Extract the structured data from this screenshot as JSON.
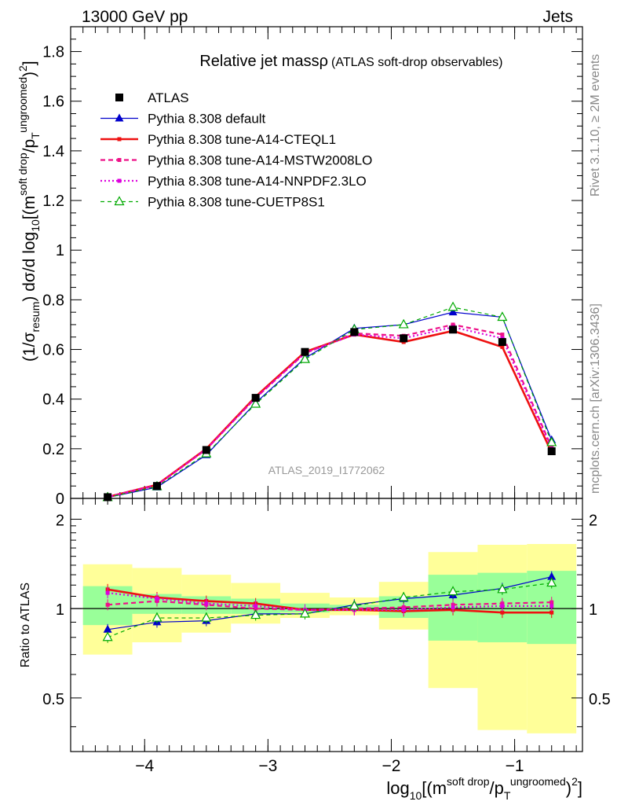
{
  "header": {
    "left": "13000 GeV pp",
    "right": "Jets"
  },
  "side_labels": {
    "rivet": "Rivet 3.1.10, ≥ 2M events",
    "mcplots": "mcplots.cern.ch [arXiv:1306.3436]"
  },
  "watermark": "ATLAS_2019_I1772062",
  "colors": {
    "atlas": "#000000",
    "default": "#0000cc",
    "cteql1": "#ee1111",
    "mstw": "#ee1188",
    "nnpdf": "#dd00dd",
    "cuetp8s1": "#00aa00",
    "band_inner": "#99ff99",
    "band_outer": "#ffff99"
  },
  "chart_data": [
    {
      "type": "line",
      "title_main": "Relative jet massρ",
      "title_sub": "(ATLAS soft-drop observables)",
      "ylabel": {
        "p1": "(1/σ",
        "sub1": "resum",
        "p2": ") dσ/d log",
        "sub2": "10",
        "p3": "[(m",
        "sup3": "soft drop",
        "p4": "/p",
        "sub4": "T",
        "sup4": "ungroomed",
        "p5": ")",
        "sup5": "2",
        "p6": "]"
      },
      "ylim": [
        0,
        1.9
      ],
      "yticks": [
        0,
        0.2,
        0.4,
        0.6,
        0.8,
        1,
        1.2,
        1.4,
        1.6,
        1.8
      ],
      "yticklabels": [
        "0",
        "0.2",
        "0.4",
        "0.6",
        "0.8",
        "1",
        "1.2",
        "1.4",
        "1.6",
        "1.8"
      ],
      "x": [
        -4.3,
        -3.9,
        -3.5,
        -3.1,
        -2.7,
        -2.3,
        -1.9,
        -1.5,
        -1.1,
        -0.7
      ],
      "series": [
        {
          "key": "atlas",
          "name": "ATLAS",
          "style": "points",
          "values": [
            0.005,
            0.05,
            0.195,
            0.405,
            0.59,
            0.67,
            0.645,
            0.68,
            0.63,
            0.19
          ]
        },
        {
          "key": "default",
          "name": "Pythia 8.308 default",
          "style": "solid-thin",
          "marker": "triangle-filled",
          "values": [
            0.004,
            0.045,
            0.175,
            0.385,
            0.565,
            0.685,
            0.7,
            0.75,
            0.73,
            0.235
          ]
        },
        {
          "key": "cteql1",
          "name": "Pythia 8.308 tune-A14-CTEQL1",
          "style": "solid-thick",
          "marker": "square-small",
          "values": [
            0.006,
            0.055,
            0.2,
            0.41,
            0.59,
            0.66,
            0.63,
            0.675,
            0.61,
            0.185
          ]
        },
        {
          "key": "mstw",
          "name": "Pythia 8.308 tune-A14-MSTW2008LO",
          "style": "dashed",
          "marker": "square-small",
          "values": [
            0.006,
            0.053,
            0.198,
            0.405,
            0.585,
            0.665,
            0.655,
            0.7,
            0.66,
            0.205
          ]
        },
        {
          "key": "nnpdf",
          "name": "Pythia 8.308 tune-A14-NNPDF2.3LO",
          "style": "dotted",
          "marker": "square-small",
          "values": [
            0.006,
            0.054,
            0.198,
            0.405,
            0.585,
            0.66,
            0.645,
            0.69,
            0.645,
            0.2
          ]
        },
        {
          "key": "cuetp8s1",
          "name": "Pythia 8.308 tune-CUETP8S1",
          "style": "dashed",
          "marker": "triangle-open",
          "values": [
            0.004,
            0.048,
            0.18,
            0.38,
            0.56,
            0.68,
            0.7,
            0.77,
            0.73,
            0.225
          ]
        }
      ]
    },
    {
      "type": "line",
      "ylabel": "Ratio to ATLAS",
      "xlabel": {
        "p1": "log",
        "sub1": "10",
        "p2": "[(m",
        "sup2": "soft drop",
        "p3": "/p",
        "sub3": "T",
        "sup3": "ungroomed",
        "p4": ")",
        "sup4": "2",
        "p5": "]"
      },
      "scale": "log",
      "ylim": [
        0.33,
        2.35
      ],
      "yticks": [
        0.5,
        1,
        2
      ],
      "yticklabels": [
        "0.5",
        "1",
        "2"
      ],
      "xlim": [
        -4.6,
        -0.45
      ],
      "xticks": [
        -4,
        -3,
        -2,
        -1
      ],
      "xticklabels": [
        "−4",
        "−3",
        "−2",
        "−1"
      ],
      "x": [
        -4.3,
        -3.9,
        -3.5,
        -3.1,
        -2.7,
        -2.3,
        -1.9,
        -1.5,
        -1.1,
        -0.7
      ],
      "bin_edges": [
        -4.5,
        -4.1,
        -3.7,
        -3.3,
        -2.9,
        -2.5,
        -2.1,
        -1.7,
        -1.3,
        -0.9,
        -0.5
      ],
      "band_inner": {
        "lo": [
          0.88,
          0.96,
          0.96,
          0.96,
          0.97,
          0.98,
          0.93,
          0.78,
          0.77,
          0.76
        ],
        "hi": [
          1.19,
          1.12,
          1.1,
          1.08,
          1.04,
          1.03,
          1.1,
          1.3,
          1.32,
          1.34
        ]
      },
      "band_outer": {
        "lo": [
          0.7,
          0.77,
          0.83,
          0.89,
          0.93,
          0.95,
          0.85,
          0.54,
          0.39,
          0.38
        ],
        "hi": [
          1.41,
          1.37,
          1.3,
          1.22,
          1.13,
          1.09,
          1.23,
          1.55,
          1.64,
          1.65
        ]
      },
      "series": [
        {
          "key": "default",
          "values": [
            0.85,
            0.9,
            0.91,
            0.96,
            0.96,
            1.03,
            1.08,
            1.11,
            1.17,
            1.28
          ]
        },
        {
          "key": "cteql1",
          "values": [
            1.16,
            1.09,
            1.06,
            1.04,
            0.99,
            0.99,
            0.98,
            0.99,
            0.97,
            0.97
          ]
        },
        {
          "key": "mstw",
          "values": [
            1.03,
            1.06,
            1.03,
            1.0,
            0.99,
            1.0,
            1.01,
            1.03,
            1.04,
            1.05
          ]
        },
        {
          "key": "nnpdf",
          "values": [
            1.13,
            1.08,
            1.04,
            1.02,
            0.99,
            0.99,
            0.99,
            1.01,
            1.02,
            1.02
          ]
        },
        {
          "key": "cuetp8s1",
          "values": [
            0.8,
            0.93,
            0.93,
            0.95,
            0.96,
            1.02,
            1.09,
            1.14,
            1.16,
            1.22
          ]
        }
      ]
    }
  ]
}
